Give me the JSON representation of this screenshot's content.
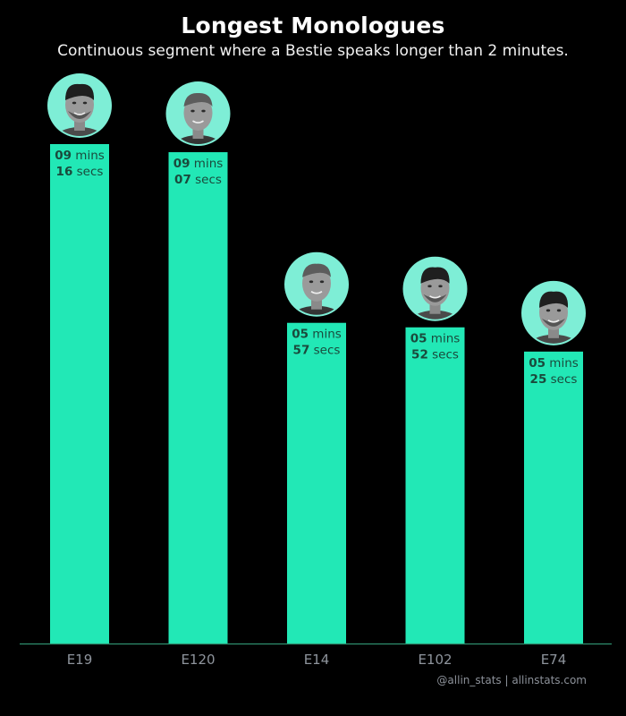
{
  "title": "Longest Monologues",
  "subtitle": "Continuous segment where a Bestie speaks longer than 2 minutes.",
  "credit": "@allin_stats | allinstats.com",
  "colors": {
    "bar": "#22e8b6",
    "baseline": "#2e8f6e",
    "label_text": "#1a4a3c",
    "tick_text": "#8e949c",
    "avatar_bg": "#7eeed6"
  },
  "chart_data": {
    "type": "bar",
    "title": "Longest Monologues",
    "subtitle": "Continuous segment where a Bestie speaks longer than 2 minutes.",
    "categories": [
      "E19",
      "E120",
      "E14",
      "E102",
      "E74"
    ],
    "values_seconds": [
      556,
      547,
      357,
      352,
      325
    ],
    "labels": [
      {
        "mins": "09",
        "mins_unit": "mins",
        "secs": "16",
        "secs_unit": "secs"
      },
      {
        "mins": "09",
        "mins_unit": "mins",
        "secs": "07",
        "secs_unit": "secs"
      },
      {
        "mins": "05",
        "mins_unit": "mins",
        "secs": "57",
        "secs_unit": "secs"
      },
      {
        "mins": "05",
        "mins_unit": "mins",
        "secs": "52",
        "secs_unit": "secs"
      },
      {
        "mins": "05",
        "mins_unit": "mins",
        "secs": "25",
        "secs_unit": "secs"
      }
    ],
    "avatars": [
      "chamath-avatar",
      "jason-avatar",
      "jason-avatar",
      "chamath-avatar",
      "chamath-avatar"
    ],
    "xlabel": "",
    "ylabel": "",
    "ylim": [
      0,
      556
    ],
    "grid": false
  }
}
